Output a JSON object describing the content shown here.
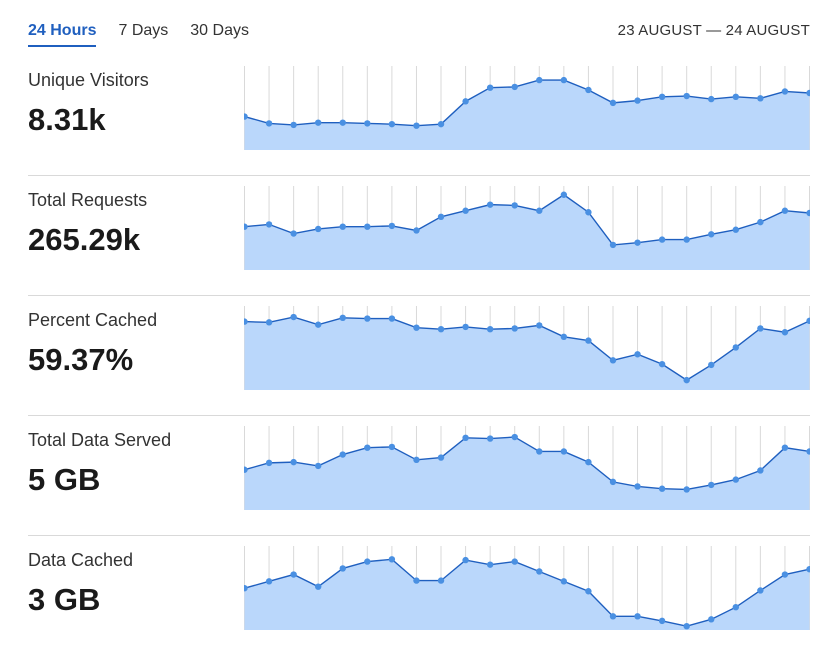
{
  "tabs": [
    {
      "label": "24 Hours",
      "active": true
    },
    {
      "label": "7 Days",
      "active": false
    },
    {
      "label": "30 Days",
      "active": false
    }
  ],
  "date_range": "23 AUGUST — 24 AUGUST",
  "colors": {
    "accent": "#1f5fbf",
    "line": "#1f5fbf",
    "dot": "#4a90e2",
    "fill": "#bad7fb",
    "grid": "#d9d9d9"
  },
  "metrics": [
    {
      "label": "Unique Visitors",
      "value": "8.31k"
    },
    {
      "label": "Total Requests",
      "value": "265.29k"
    },
    {
      "label": "Percent Cached",
      "value": "59.37%"
    },
    {
      "label": "Total Data Served",
      "value": "5 GB"
    },
    {
      "label": "Data Cached",
      "value": "3 GB"
    }
  ],
  "chart_data": [
    {
      "type": "area",
      "series": [
        {
          "values": [
            0.44,
            0.35,
            0.33,
            0.36,
            0.36,
            0.35,
            0.34,
            0.32,
            0.34,
            0.64,
            0.82,
            0.83,
            0.92,
            0.92,
            0.79,
            0.62,
            0.65,
            0.7,
            0.71,
            0.67,
            0.7,
            0.68,
            0.77,
            0.75
          ]
        }
      ],
      "ylim": [
        0,
        1
      ]
    },
    {
      "type": "area",
      "series": [
        {
          "values": [
            0.57,
            0.6,
            0.48,
            0.54,
            0.57,
            0.57,
            0.58,
            0.52,
            0.7,
            0.78,
            0.86,
            0.85,
            0.78,
            0.99,
            0.76,
            0.33,
            0.36,
            0.4,
            0.4,
            0.47,
            0.53,
            0.63,
            0.78,
            0.75
          ]
        }
      ],
      "ylim": [
        0,
        1
      ]
    },
    {
      "type": "area",
      "series": [
        {
          "values": [
            0.9,
            0.89,
            0.96,
            0.86,
            0.95,
            0.94,
            0.94,
            0.82,
            0.8,
            0.83,
            0.8,
            0.81,
            0.85,
            0.7,
            0.65,
            0.39,
            0.47,
            0.34,
            0.13,
            0.33,
            0.56,
            0.81,
            0.76,
            0.91
          ]
        }
      ],
      "ylim": [
        0,
        1
      ]
    },
    {
      "type": "area",
      "series": [
        {
          "values": [
            0.53,
            0.62,
            0.63,
            0.58,
            0.73,
            0.82,
            0.83,
            0.66,
            0.69,
            0.95,
            0.94,
            0.96,
            0.77,
            0.77,
            0.63,
            0.37,
            0.31,
            0.28,
            0.27,
            0.33,
            0.4,
            0.52,
            0.82,
            0.77
          ]
        }
      ],
      "ylim": [
        0,
        1
      ]
    },
    {
      "type": "area",
      "series": [
        {
          "values": [
            0.55,
            0.64,
            0.73,
            0.57,
            0.81,
            0.9,
            0.93,
            0.65,
            0.65,
            0.92,
            0.86,
            0.9,
            0.77,
            0.64,
            0.51,
            0.18,
            0.18,
            0.12,
            0.05,
            0.14,
            0.3,
            0.52,
            0.73,
            0.8
          ]
        }
      ],
      "ylim": [
        0,
        1
      ]
    }
  ]
}
